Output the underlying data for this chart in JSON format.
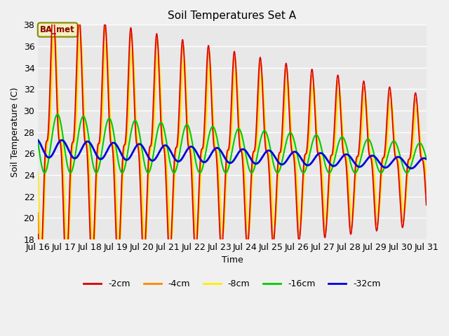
{
  "title": "Soil Temperatures Set A",
  "xlabel": "Time",
  "ylabel": "Soil Temperature (C)",
  "annotation": "BA_met",
  "ylim": [
    18,
    38
  ],
  "series": {
    "-2cm": {
      "color": "#dd0000",
      "lw": 1.2
    },
    "-4cm": {
      "color": "#ff8800",
      "lw": 1.2
    },
    "-8cm": {
      "color": "#ffee00",
      "lw": 1.2
    },
    "-16cm": {
      "color": "#00cc00",
      "lw": 1.5
    },
    "-32cm": {
      "color": "#0000dd",
      "lw": 2.0
    }
  },
  "bg_color": "#e8e8e8",
  "grid_color": "#ffffff",
  "xtick_labels": [
    "Jul 16",
    "Jul 17",
    "Jul 18",
    "Jul 19",
    "Jul 20",
    "Jul 21",
    "Jul 22",
    "Jul 23",
    "Jul 24",
    "Jul 25",
    "Jul 26",
    "Jul 27",
    "Jul 28",
    "Jul 29",
    "Jul 30",
    "Jul 31"
  ],
  "fig_bg": "#f0f0f0"
}
